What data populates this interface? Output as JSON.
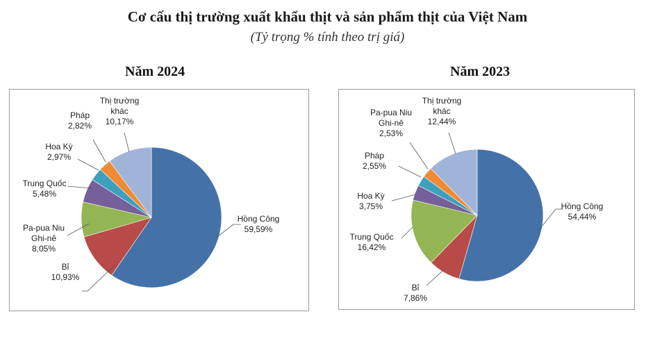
{
  "title": "Cơ cấu thị trường xuất khẩu thịt và sản phẩm thịt của Việt Nam",
  "subtitle": "(Tỷ trọng % tính theo trị giá)",
  "chart_data": [
    {
      "type": "pie",
      "title": "Năm 2024",
      "slices": [
        {
          "name": "Hồng Công",
          "value": 59.59,
          "label": "59,59%",
          "color": "#4472a8"
        },
        {
          "name": "Bỉ",
          "value": 10.93,
          "label": "10,93%",
          "color": "#b84a47"
        },
        {
          "name": "Pa-pua Niu Ghi-nê",
          "value": 8.05,
          "label": "8,05%",
          "color": "#93b553"
        },
        {
          "name": "Trung Quốc",
          "value": 5.48,
          "label": "5,48%",
          "color": "#75609a"
        },
        {
          "name": "Hoa Kỳ",
          "value": 2.97,
          "label": "2,97%",
          "color": "#3ea0bd"
        },
        {
          "name": "Pháp",
          "value": 2.82,
          "label": "2,82%",
          "color": "#f08a33"
        },
        {
          "name": "Thị trường khác",
          "value": 10.17,
          "label": "10,17%",
          "color": "#9fb4d8"
        }
      ]
    },
    {
      "type": "pie",
      "title": "Năm 2023",
      "slices": [
        {
          "name": "Hồng Công",
          "value": 54.44,
          "label": "54,44%",
          "color": "#4472a8"
        },
        {
          "name": "Bỉ",
          "value": 7.86,
          "label": "7,86%",
          "color": "#b84a47"
        },
        {
          "name": "Trung Quốc",
          "value": 16.42,
          "label": "16,42%",
          "color": "#93b553"
        },
        {
          "name": "Hoa Kỳ",
          "value": 3.75,
          "label": "3,75%",
          "color": "#75609a"
        },
        {
          "name": "Pháp",
          "value": 2.55,
          "label": "2,55%",
          "color": "#3ea0bd"
        },
        {
          "name": "Pa-pua Niu Ghi-nê",
          "value": 2.53,
          "label": "2,53%",
          "color": "#f08a33"
        },
        {
          "name": "Thị trường khác",
          "value": 12.44,
          "label": "12,44%",
          "color": "#9fb4d8"
        }
      ]
    }
  ]
}
